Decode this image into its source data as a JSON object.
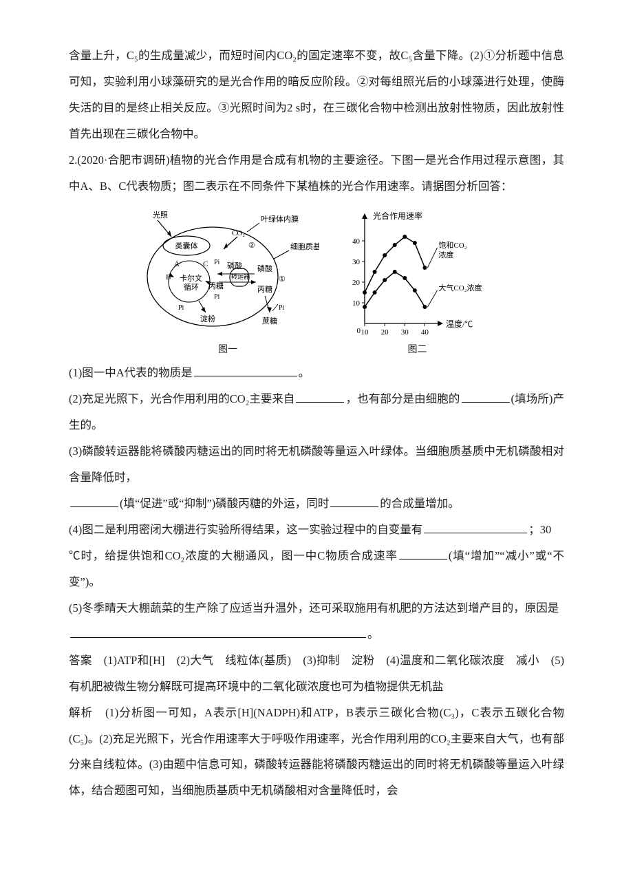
{
  "body": {
    "intro_prev": "含量上升，C₅的生成量减少，而短时间内CO₂的固定速率不变，故C₅含量下降。(2)①分析题中信息可知，实验利用小球藻研究的是光合作用的暗反应阶段。②对每组照光后的小球藻进行处理，使酶失活的目的是终止相关反应。③光照时间为2 s时，在三碳化合物中检测出放射性物质，因此放射性首先出现在三碳化合物中。",
    "q2_stem": "2.(2020·合肥市调研)植物的光合作用是合成有机物的主要途径。下图一是光合作用过程示意图，其中A、B、C代表物质；图二表示在不同条件下某植株的光合作用速率。请据图分析回答：",
    "q2_1_pre": "(1)图一中A代表的物质是",
    "q2_1_post": "。",
    "q2_2_pre": "(2)充足光照下，光合作用利用的CO₂主要来自",
    "q2_2_mid": "，也有部分是由细胞的",
    "q2_2_post": "(填场所)产生的。",
    "q2_3_pre": "(3)磷酸转运器能将磷酸丙糖运出的同时将无机磷酸等量运入叶绿体。当细胞质基质中无机磷酸相对含量降低时，",
    "q2_3_mid": "(填“促进”或“抑制”)磷酸丙糖的外运，同时",
    "q2_3_post": "的合成量增加。",
    "q2_4_pre": "(4)图二是利用密闭大棚进行实验所得结果，这一实验过程中的自变量有",
    "q2_4_mid": "；30 ℃时，给提供饱和CO₂浓度的大棚通风，图一中C物质合成速率",
    "q2_4_post": "(填“增加”“减小”或“不变”)。",
    "q2_5_pre": "(5)冬季晴天大棚蔬菜的生产除了应适当升温外，还可采取施用有机肥的方法达到增产目的，原因是",
    "q2_5_post": "。",
    "answer": "答案　(1)ATP和[H]　(2)大气　线粒体(基质)　(3)抑制　淀粉　(4)温度和二氧化碳浓度　减小　(5)有机肥被微生物分解既可提高环境中的二氧化碳浓度也可为植物提供无机盐",
    "analysis": "解析　(1)分析图一可知，A表示[H](NADPH)和ATP，B表示三碳化合物(C₃)，C表示五碳化合物(C₅)。(2)充足光照下，光合作用速率大于呼吸作用速率，光合作用利用的CO₂主要来自大气，也有部分来自线粒体。(3)由题中信息可知，磷酸转运器能将磷酸丙糖运出的同时将无机磷酸等量运入叶绿体，结合题图可知，当细胞质基质中无机磷酸相对含量降低时，会"
  },
  "figure1": {
    "caption": "图一",
    "labels": {
      "light": "光照",
      "membrane": "叶绿体内膜",
      "thylakoid": "类囊体",
      "co2": "CO₂",
      "cytomatrix": "细胞质基质",
      "A": "A",
      "B": "B",
      "C": "C",
      "calvin1": "卡尔文",
      "calvin2": "循环",
      "pi": "Pi",
      "phosphate": "磷酸",
      "transporter": "转运器",
      "triose": "丙糖",
      "starch": "淀粉",
      "sucrose": "蔗糖",
      "n1": "①",
      "n2": "②"
    },
    "stroke": "#000000",
    "fill": "#ffffff",
    "fontsize": 11
  },
  "figure2": {
    "caption": "图二",
    "type": "line",
    "ylabel": "光合作用速率",
    "xlabel": "温度/℃",
    "xlim": [
      10,
      45
    ],
    "ylim": [
      0,
      50
    ],
    "xticks": [
      10,
      20,
      30,
      40
    ],
    "yticks": [
      10,
      20,
      30,
      40
    ],
    "series": [
      {
        "name": "饱和CO₂浓度",
        "label": "饱和CO₂\n浓度",
        "x": [
          10,
          15,
          20,
          25,
          30,
          35,
          40
        ],
        "y": [
          15,
          25,
          33,
          38,
          42,
          39,
          27
        ]
      },
      {
        "name": "大气CO₂浓度",
        "label": "大气CO₂浓度",
        "x": [
          10,
          15,
          20,
          25,
          30,
          35,
          40
        ],
        "y": [
          8,
          15,
          21,
          25,
          22,
          16,
          8
        ]
      }
    ],
    "line_color": "#000000",
    "marker": "circle",
    "marker_size": 3,
    "stroke_width": 1.5,
    "axis_color": "#000000",
    "fontsize": 12,
    "tick_fontsize": 11
  }
}
